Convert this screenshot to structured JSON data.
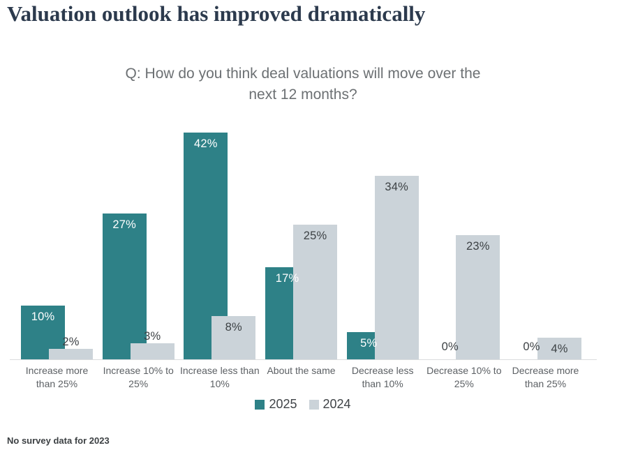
{
  "page": {
    "title": "Valuation outlook has improved dramatically",
    "footnote": "No survey data for 2023"
  },
  "chart_data": {
    "type": "bar",
    "title": "Q: How do you think deal valuations will move over the\nnext 12 months?",
    "categories": [
      "Increase more than 25%",
      "Increase 10% to 25%",
      "Increase less than 10%",
      "About the same",
      "Decrease less than 10%",
      "Decrease 10% to 25%",
      "Decrease more than 25%"
    ],
    "series": [
      {
        "name": "2025",
        "color": "#2e8187",
        "label_color": "#ffffff",
        "values": [
          10,
          27,
          42,
          17,
          5,
          0,
          0
        ]
      },
      {
        "name": "2024",
        "color": "#cbd3d9",
        "label_color": "#3d4245",
        "values": [
          2,
          3,
          8,
          25,
          34,
          23,
          4
        ]
      }
    ],
    "value_suffix": "%",
    "ylim": [
      0,
      44
    ],
    "grid": false,
    "legend": {
      "position": "bottom",
      "entries": [
        "2025",
        "2024"
      ]
    },
    "axis_line_color": "#dadcde",
    "outside_label_color": "#3d4245",
    "category_label_color": "#5c6064"
  }
}
